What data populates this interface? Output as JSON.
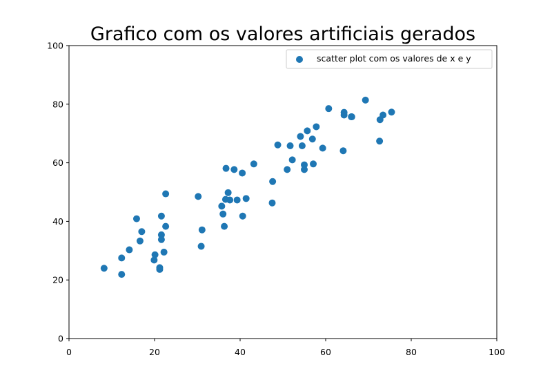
{
  "chart_data": {
    "type": "scatter",
    "title": "Grafico com os valores artificiais gerados",
    "xlabel": "",
    "ylabel": "",
    "xlim": [
      0,
      100
    ],
    "ylim": [
      0,
      100
    ],
    "xticks": [
      0,
      20,
      40,
      60,
      80,
      100
    ],
    "yticks": [
      0,
      20,
      40,
      60,
      80,
      100
    ],
    "grid": false,
    "legend_position": "top-right",
    "series": [
      {
        "name": "scatter plot com os valores de x e y",
        "color": "#1f77b4",
        "points": [
          [
            8.2,
            24.0
          ],
          [
            12.3,
            27.5
          ],
          [
            12.3,
            21.9
          ],
          [
            14.1,
            30.3
          ],
          [
            15.8,
            40.9
          ],
          [
            16.6,
            33.3
          ],
          [
            17.0,
            36.5
          ],
          [
            19.9,
            26.8
          ],
          [
            20.1,
            28.6
          ],
          [
            21.2,
            24.2
          ],
          [
            21.2,
            23.6
          ],
          [
            21.6,
            33.8
          ],
          [
            21.6,
            35.4
          ],
          [
            21.6,
            41.8
          ],
          [
            22.2,
            29.5
          ],
          [
            22.6,
            38.3
          ],
          [
            22.6,
            49.4
          ],
          [
            30.2,
            48.5
          ],
          [
            30.9,
            31.5
          ],
          [
            31.1,
            37.1
          ],
          [
            35.7,
            45.2
          ],
          [
            36.0,
            42.5
          ],
          [
            36.3,
            38.3
          ],
          [
            36.6,
            47.5
          ],
          [
            36.7,
            58.1
          ],
          [
            37.2,
            49.8
          ],
          [
            37.6,
            47.3
          ],
          [
            38.6,
            57.7
          ],
          [
            39.3,
            47.3
          ],
          [
            40.5,
            56.5
          ],
          [
            40.6,
            41.8
          ],
          [
            41.4,
            47.8
          ],
          [
            43.2,
            59.6
          ],
          [
            47.5,
            46.3
          ],
          [
            47.6,
            53.6
          ],
          [
            48.8,
            66.1
          ],
          [
            51.0,
            57.7
          ],
          [
            51.7,
            65.8
          ],
          [
            52.2,
            61.0
          ],
          [
            54.1,
            69.0
          ],
          [
            54.5,
            65.8
          ],
          [
            55.0,
            57.7
          ],
          [
            55.0,
            59.3
          ],
          [
            55.7,
            70.9
          ],
          [
            56.9,
            68.1
          ],
          [
            57.1,
            59.6
          ],
          [
            57.8,
            72.3
          ],
          [
            59.3,
            65.0
          ],
          [
            60.7,
            78.5
          ],
          [
            64.1,
            64.1
          ],
          [
            64.3,
            76.3
          ],
          [
            64.3,
            77.2
          ],
          [
            66.0,
            75.7
          ],
          [
            66.1,
            75.7
          ],
          [
            69.3,
            81.4
          ],
          [
            72.6,
            67.4
          ],
          [
            72.7,
            74.7
          ],
          [
            73.4,
            76.3
          ],
          [
            75.4,
            77.3
          ]
        ]
      }
    ]
  }
}
